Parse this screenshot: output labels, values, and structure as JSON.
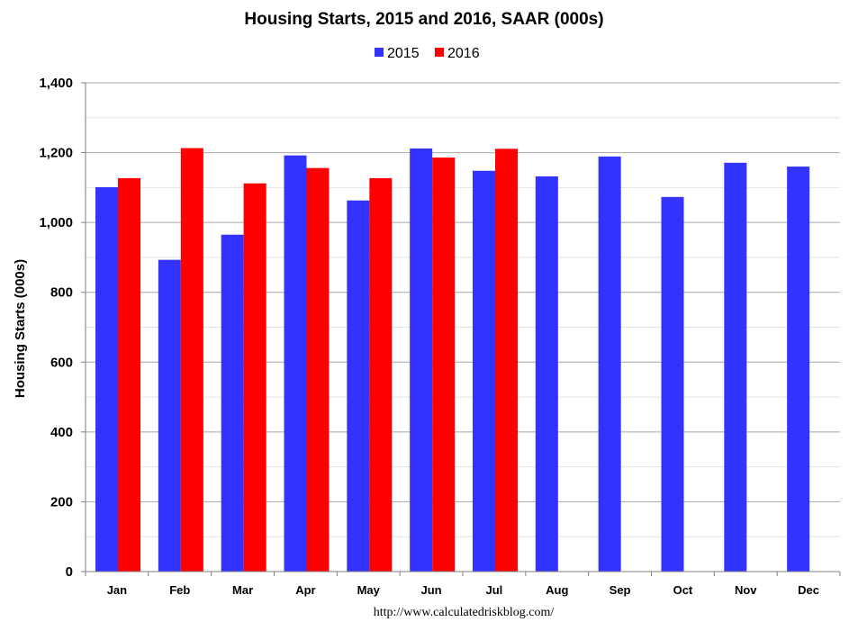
{
  "chart_data": {
    "type": "bar",
    "title": "Housing Starts,  2015 and 2016, SAAR (000s)",
    "ylabel": "Housing Starts (000s)",
    "xlabel": "",
    "categories": [
      "Jan",
      "Feb",
      "Mar",
      "Apr",
      "May",
      "Jun",
      "Jul",
      "Aug",
      "Sep",
      "Oct",
      "Nov",
      "Dec"
    ],
    "series": [
      {
        "name": "2015",
        "color": "#3333FF",
        "values": [
          1101,
          893,
          965,
          1192,
          1063,
          1212,
          1148,
          1132,
          1189,
          1073,
          1171,
          1160
        ]
      },
      {
        "name": "2016",
        "color": "#FF0000",
        "values": [
          1127,
          1213,
          1112,
          1156,
          1127,
          1186,
          1211,
          null,
          null,
          null,
          null,
          null
        ]
      }
    ],
    "ylim": [
      0,
      1400
    ],
    "yticks": [
      "0",
      "200",
      "400",
      "600",
      "800",
      "1,000",
      "1,200",
      "1,400"
    ],
    "grid": true,
    "legend_position": "top-center",
    "source": "http://www.calculatedriskblog.com/"
  }
}
